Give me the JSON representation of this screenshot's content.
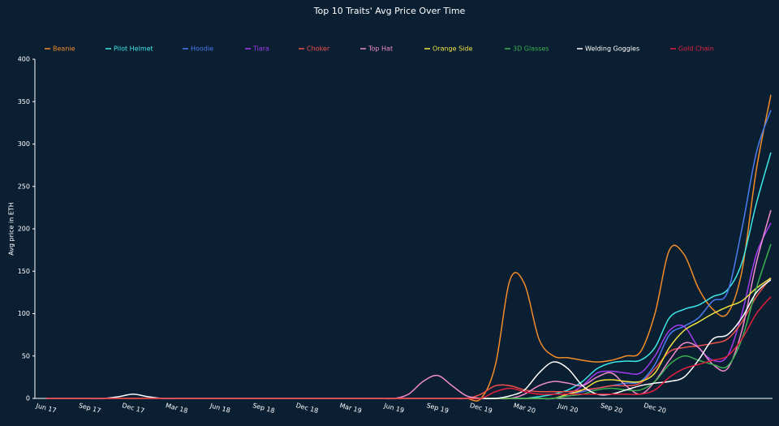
{
  "chart_data": {
    "type": "line",
    "title": "Top 10 Traits' Avg Price Over Time",
    "y_label": "Avg price in ETH",
    "categories": [
      "Jun 17",
      null,
      null,
      "Sep 17",
      null,
      null,
      "Dec 17",
      null,
      null,
      "Mar 18",
      null,
      null,
      "Jun 18",
      null,
      null,
      "Sep 18",
      null,
      null,
      "Dec 18",
      null,
      null,
      "Mar 19",
      null,
      null,
      "Jun 19",
      null,
      null,
      "Sep 19",
      null,
      null,
      "Dec 19",
      null,
      null,
      "Mar 20",
      null,
      null,
      "Jun 20",
      null,
      null,
      "Sep 20",
      null,
      null,
      "Dec 20",
      null,
      null,
      null,
      null,
      null,
      null,
      null,
      null
    ],
    "ylim": [
      0,
      400
    ],
    "yticks": [
      0,
      50,
      100,
      150,
      200,
      250,
      300,
      350,
      400
    ],
    "grid": false,
    "legend": "top",
    "series": [
      {
        "name": "Beanie",
        "color": "#f28c28",
        "values": [
          0,
          0,
          0,
          0,
          0,
          0,
          0,
          0,
          0,
          0,
          0,
          0,
          0,
          0,
          0,
          0,
          0,
          0,
          0,
          0,
          0,
          0,
          0,
          0,
          0,
          0,
          0,
          0,
          0,
          0,
          0,
          40,
          140,
          135,
          70,
          50,
          48,
          45,
          43,
          45,
          50,
          55,
          100,
          175,
          170,
          130,
          105,
          100,
          150,
          270,
          358
        ]
      },
      {
        "name": "Pilot Helmet",
        "color": "#3ee6e6",
        "values": [
          0,
          0,
          0,
          0,
          0,
          0,
          0,
          0,
          0,
          0,
          0,
          0,
          0,
          0,
          0,
          0,
          0,
          0,
          0,
          0,
          0,
          0,
          0,
          0,
          0,
          0,
          0,
          0,
          0,
          0,
          0,
          0,
          0,
          0,
          2,
          5,
          10,
          20,
          35,
          42,
          44,
          45,
          60,
          95,
          105,
          110,
          120,
          128,
          160,
          230,
          290
        ]
      },
      {
        "name": "Hoodie",
        "color": "#4a7cf0",
        "values": [
          0,
          0,
          0,
          0,
          0,
          0,
          0,
          0,
          0,
          0,
          0,
          0,
          0,
          0,
          0,
          0,
          0,
          0,
          0,
          0,
          0,
          0,
          0,
          0,
          0,
          0,
          0,
          0,
          0,
          0,
          0,
          0,
          0,
          0,
          0,
          0,
          5,
          8,
          12,
          15,
          18,
          20,
          40,
          75,
          85,
          95,
          115,
          125,
          200,
          290,
          340
        ]
      },
      {
        "name": "Tiara",
        "color": "#a23cf0",
        "values": [
          0,
          0,
          0,
          0,
          0,
          0,
          0,
          0,
          0,
          0,
          0,
          0,
          0,
          0,
          0,
          0,
          0,
          0,
          0,
          0,
          0,
          0,
          0,
          0,
          0,
          0,
          0,
          0,
          0,
          0,
          0,
          0,
          0,
          0,
          0,
          0,
          5,
          15,
          30,
          32,
          30,
          30,
          50,
          80,
          85,
          60,
          45,
          50,
          100,
          170,
          207
        ]
      },
      {
        "name": "Choker",
        "color": "#f0504a",
        "values": [
          0,
          0,
          0,
          0,
          0,
          0,
          0,
          0,
          0,
          0,
          0,
          0,
          0,
          0,
          0,
          0,
          0,
          0,
          0,
          0,
          0,
          0,
          0,
          0,
          0,
          0,
          0,
          0,
          0,
          0,
          5,
          15,
          15,
          10,
          8,
          8,
          8,
          10,
          12,
          15,
          15,
          18,
          35,
          55,
          60,
          62,
          65,
          70,
          90,
          120,
          142
        ]
      },
      {
        "name": "Top Hat",
        "color": "#f08ccc",
        "values": [
          0,
          0,
          0,
          0,
          0,
          0,
          0,
          0,
          0,
          0,
          0,
          0,
          0,
          0,
          0,
          0,
          0,
          0,
          0,
          0,
          0,
          0,
          0,
          0,
          0,
          5,
          20,
          27,
          15,
          3,
          0,
          0,
          0,
          5,
          15,
          20,
          18,
          15,
          25,
          30,
          15,
          5,
          20,
          45,
          65,
          60,
          40,
          35,
          80,
          160,
          222
        ]
      },
      {
        "name": "Orange Side",
        "color": "#f0e040",
        "values": [
          0,
          0,
          0,
          0,
          0,
          0,
          0,
          0,
          0,
          0,
          0,
          0,
          0,
          0,
          0,
          0,
          0,
          0,
          0,
          0,
          0,
          0,
          0,
          0,
          0,
          0,
          0,
          0,
          0,
          0,
          0,
          0,
          0,
          0,
          0,
          0,
          5,
          10,
          20,
          22,
          20,
          20,
          30,
          60,
          80,
          90,
          100,
          108,
          115,
          130,
          142
        ]
      },
      {
        "name": "3D Glasses",
        "color": "#3cb050",
        "values": [
          0,
          0,
          0,
          0,
          0,
          0,
          0,
          0,
          0,
          0,
          0,
          0,
          0,
          0,
          0,
          0,
          0,
          0,
          0,
          0,
          0,
          0,
          0,
          0,
          0,
          0,
          0,
          0,
          0,
          0,
          0,
          0,
          0,
          0,
          0,
          0,
          3,
          5,
          10,
          12,
          10,
          10,
          20,
          40,
          50,
          45,
          40,
          38,
          70,
          130,
          182
        ]
      },
      {
        "name": "Welding Goggles",
        "color": "#ffffff",
        "values": [
          0,
          0,
          0,
          0,
          0,
          2,
          5,
          2,
          0,
          0,
          0,
          0,
          0,
          0,
          0,
          0,
          0,
          0,
          0,
          0,
          0,
          0,
          0,
          0,
          0,
          0,
          0,
          0,
          0,
          0,
          0,
          0,
          3,
          10,
          30,
          43,
          35,
          15,
          5,
          5,
          10,
          15,
          18,
          20,
          25,
          45,
          70,
          75,
          95,
          125,
          140
        ]
      },
      {
        "name": "Gold Chain",
        "color": "#e0203c",
        "values": [
          0,
          0,
          0,
          0,
          0,
          0,
          0,
          0,
          0,
          0,
          0,
          0,
          0,
          0,
          0,
          0,
          0,
          0,
          0,
          0,
          0,
          0,
          0,
          0,
          0,
          0,
          0,
          0,
          0,
          0,
          0,
          8,
          12,
          8,
          5,
          5,
          5,
          5,
          5,
          5,
          5,
          5,
          10,
          25,
          35,
          40,
          45,
          50,
          70,
          100,
          120
        ]
      }
    ]
  }
}
